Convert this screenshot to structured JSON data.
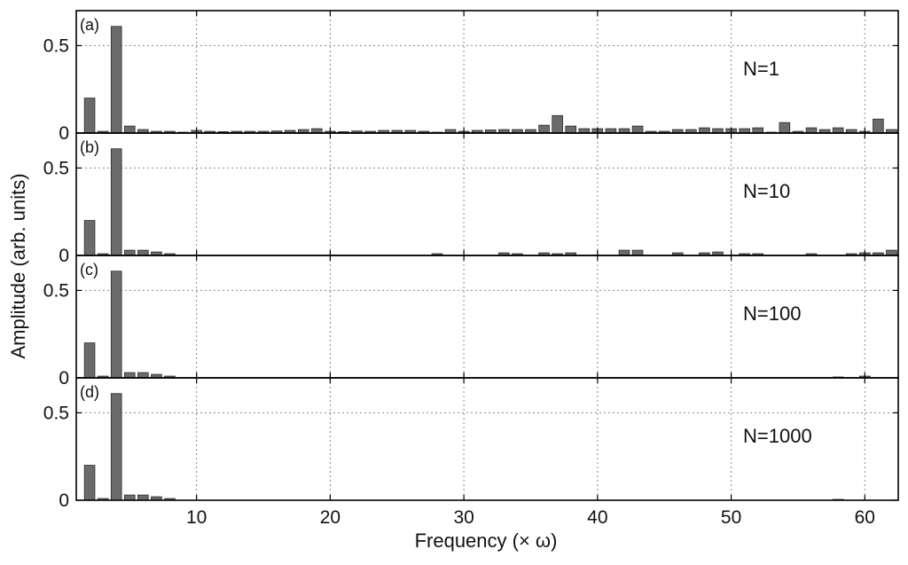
{
  "chart_data": {
    "type": "bar",
    "xlabel": "Frequency (× ω)",
    "ylabel": "Amplitude (arb. units)",
    "xlim": [
      1,
      62.5
    ],
    "xticks": [
      10,
      20,
      30,
      40,
      50,
      60
    ],
    "yticks": [
      0,
      0.5
    ],
    "grid": true,
    "panels": [
      {
        "tag": "(a)",
        "label": "N=1",
        "ylim": [
          0,
          0.7
        ],
        "x": [
          2,
          3,
          4,
          5,
          6,
          7,
          8,
          9,
          10,
          11,
          12,
          13,
          14,
          15,
          16,
          17,
          18,
          19,
          20,
          21,
          22,
          23,
          24,
          25,
          26,
          27,
          28,
          29,
          30,
          31,
          32,
          33,
          34,
          35,
          36,
          37,
          38,
          39,
          40,
          41,
          42,
          43,
          44,
          45,
          46,
          47,
          48,
          49,
          50,
          51,
          52,
          53,
          54,
          55,
          56,
          57,
          58,
          59,
          60,
          61,
          62
        ],
        "values": [
          0.2,
          0.01,
          0.61,
          0.04,
          0.02,
          0.01,
          0.01,
          0.005,
          0.015,
          0.01,
          0.008,
          0.01,
          0.01,
          0.01,
          0.012,
          0.015,
          0.02,
          0.025,
          0.01,
          0.008,
          0.012,
          0.01,
          0.015,
          0.015,
          0.015,
          0.01,
          0.005,
          0.02,
          0.01,
          0.015,
          0.018,
          0.02,
          0.02,
          0.02,
          0.045,
          0.1,
          0.04,
          0.025,
          0.025,
          0.025,
          0.025,
          0.04,
          0.01,
          0.01,
          0.02,
          0.02,
          0.03,
          0.025,
          0.025,
          0.025,
          0.03,
          0.005,
          0.06,
          0.01,
          0.03,
          0.02,
          0.03,
          0.02,
          0.01,
          0.08,
          0.02
        ]
      },
      {
        "tag": "(b)",
        "label": "N=10",
        "ylim": [
          0,
          0.7
        ],
        "x": [
          2,
          3,
          4,
          5,
          6,
          7,
          8,
          28,
          33,
          34,
          36,
          37,
          38,
          42,
          43,
          46,
          48,
          49,
          51,
          52,
          56,
          59,
          60,
          61,
          62
        ],
        "values": [
          0.2,
          0.01,
          0.61,
          0.03,
          0.03,
          0.02,
          0.01,
          0.01,
          0.015,
          0.01,
          0.015,
          0.01,
          0.015,
          0.03,
          0.03,
          0.015,
          0.015,
          0.02,
          0.01,
          0.01,
          0.01,
          0.01,
          0.015,
          0.015,
          0.03
        ]
      },
      {
        "tag": "(c)",
        "label": "N=100",
        "ylim": [
          0,
          0.7
        ],
        "x": [
          2,
          3,
          4,
          5,
          6,
          7,
          8,
          58,
          60
        ],
        "values": [
          0.2,
          0.01,
          0.61,
          0.03,
          0.03,
          0.02,
          0.01,
          0.005,
          0.01
        ]
      },
      {
        "tag": "(d)",
        "label": "N=1000",
        "ylim": [
          0,
          0.7
        ],
        "x": [
          2,
          3,
          4,
          5,
          6,
          7,
          8,
          58
        ],
        "values": [
          0.2,
          0.01,
          0.61,
          0.03,
          0.03,
          0.02,
          0.01,
          0.005
        ]
      }
    ]
  },
  "colors": {
    "bar_fill": "#6b6b6b",
    "bar_stroke": "#2a2a2a",
    "axis": "#000000",
    "grid": "#8a8a8a"
  }
}
